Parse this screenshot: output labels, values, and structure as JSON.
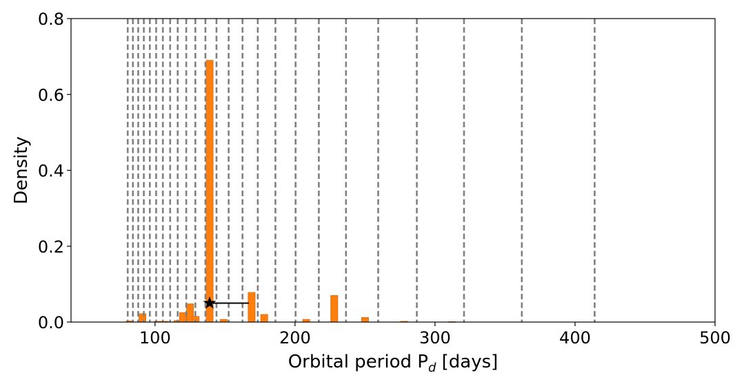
{
  "chart_data": {
    "type": "bar",
    "title": "",
    "xlabel_main": "Orbital period P",
    "xlabel_sub": "d",
    "xlabel_unit": " [days]",
    "ylabel": "Density",
    "xlim": [
      40,
      500
    ],
    "ylim": [
      0,
      0.8
    ],
    "grid": false,
    "x_ticks": [
      100,
      200,
      300,
      400,
      500
    ],
    "y_ticks": [
      0.0,
      0.2,
      0.4,
      0.6,
      0.8
    ],
    "x_tick_labels": [
      "100",
      "200",
      "300",
      "400",
      "500"
    ],
    "y_tick_labels": [
      "0.0",
      "0.2",
      "0.4",
      "0.6",
      "0.8"
    ],
    "bar_color": "#ff7f0e",
    "bar_edge_color": "#d9690b",
    "bar_width": 5,
    "bars": [
      {
        "x": 82,
        "value": 0.003
      },
      {
        "x": 91,
        "value": 0.022
      },
      {
        "x": 102,
        "value": 0.002
      },
      {
        "x": 107,
        "value": 0.002
      },
      {
        "x": 116,
        "value": 0.004
      },
      {
        "x": 120,
        "value": 0.025
      },
      {
        "x": 125,
        "value": 0.048
      },
      {
        "x": 129,
        "value": 0.015
      },
      {
        "x": 139,
        "value": 0.69
      },
      {
        "x": 149,
        "value": 0.007
      },
      {
        "x": 169,
        "value": 0.078
      },
      {
        "x": 178,
        "value": 0.02
      },
      {
        "x": 208,
        "value": 0.007
      },
      {
        "x": 228,
        "value": 0.07
      },
      {
        "x": 250,
        "value": 0.012
      },
      {
        "x": 278,
        "value": 0.002
      },
      {
        "x": 312,
        "value": 0.001
      }
    ],
    "vlines": [
      80.5,
      84.2,
      88.0,
      92.0,
      96.3,
      100.8,
      105.6,
      110.8,
      116.2,
      122.3,
      128.8,
      136.0,
      143.9,
      152.6,
      162.5,
      173.4,
      186.0,
      200.4,
      217.0,
      236.4,
      259.4,
      287.0,
      320.7,
      362.0,
      414.0
    ],
    "vline_color": "#808080",
    "marker": {
      "symbol": "star",
      "x": 139,
      "y": 0.05,
      "color": "#000000"
    },
    "errorbar": {
      "x_start": 139,
      "x_end": 167,
      "y": 0.05,
      "color": "#000000"
    }
  }
}
